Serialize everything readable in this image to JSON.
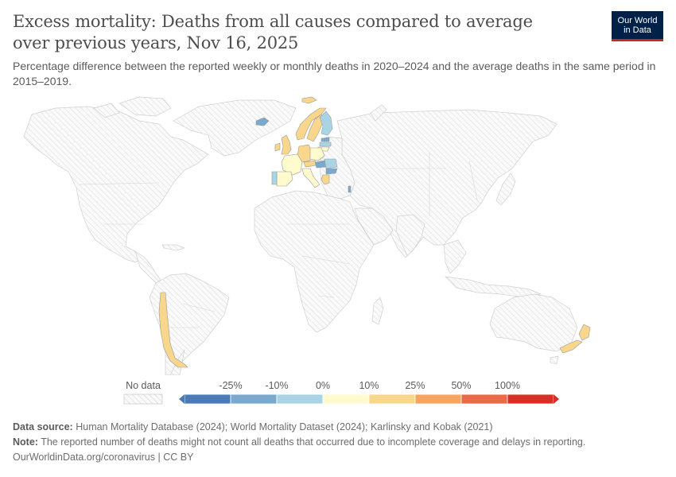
{
  "header": {
    "title": "Excess mortality: Deaths from all causes compared to average over previous years, Nov 16, 2025",
    "subtitle": "Percentage difference between the reported weekly or monthly deaths in 2020–2024 and the average deaths in the same period in 2015–2019.",
    "logo_line1": "Our World",
    "logo_line2": "in Data"
  },
  "legend": {
    "no_data_label": "No data",
    "ticks": [
      "-25%",
      "-10%",
      "0%",
      "10%",
      "25%",
      "50%",
      "100%"
    ],
    "bins": [
      {
        "color": "#4a7ab7"
      },
      {
        "color": "#79a9cf"
      },
      {
        "color": "#a9d4e5"
      },
      {
        "color": "#fffbcf"
      },
      {
        "color": "#f8d68b"
      },
      {
        "color": "#f6a55f"
      },
      {
        "color": "#ea6a46"
      },
      {
        "color": "#d73027"
      }
    ]
  },
  "map_data": {
    "countries_with_data": [
      {
        "name": "Norway",
        "color": "#f8d68b"
      },
      {
        "name": "Sweden",
        "color": "#f8d68b"
      },
      {
        "name": "Finland",
        "color": "#a9d4e5"
      },
      {
        "name": "Iceland",
        "color": "#79a9cf"
      },
      {
        "name": "Svalbard",
        "color": "#f8d68b"
      },
      {
        "name": "United Kingdom",
        "color": "#f8d68b"
      },
      {
        "name": "Ireland",
        "color": "#f8d68b"
      },
      {
        "name": "France",
        "color": "#fffbcf"
      },
      {
        "name": "Spain",
        "color": "#fffbcf"
      },
      {
        "name": "Portugal",
        "color": "#a9d4e5"
      },
      {
        "name": "Germany",
        "color": "#f8d68b"
      },
      {
        "name": "Poland",
        "color": "#fffbcf"
      },
      {
        "name": "Estonia",
        "color": "#79a9cf"
      },
      {
        "name": "Latvia",
        "color": "#a9d4e5"
      },
      {
        "name": "Lithuania",
        "color": "#fffbcf"
      },
      {
        "name": "Italy",
        "color": "#fffbcf"
      },
      {
        "name": "Austria",
        "color": "#f8d68b"
      },
      {
        "name": "Hungary",
        "color": "#79a9cf"
      },
      {
        "name": "Romania",
        "color": "#a9d4e5"
      },
      {
        "name": "Bulgaria",
        "color": "#79a9cf"
      },
      {
        "name": "Greece",
        "color": "#f8d68b"
      },
      {
        "name": "Israel",
        "color": "#79a9cf"
      },
      {
        "name": "Chile",
        "color": "#f8d68b"
      },
      {
        "name": "New Zealand",
        "color": "#f8d68b"
      }
    ]
  },
  "footer": {
    "source_label": "Data source:",
    "source_text": "Human Mortality Database (2024); World Mortality Dataset (2024); Karlinsky and Kobak (2021)",
    "note_label": "Note:",
    "note_text": "The reported number of deaths might not count all deaths that occurred due to incomplete coverage and delays in reporting.",
    "url_text": "OurWorldinData.org/coronavirus | CC BY"
  }
}
